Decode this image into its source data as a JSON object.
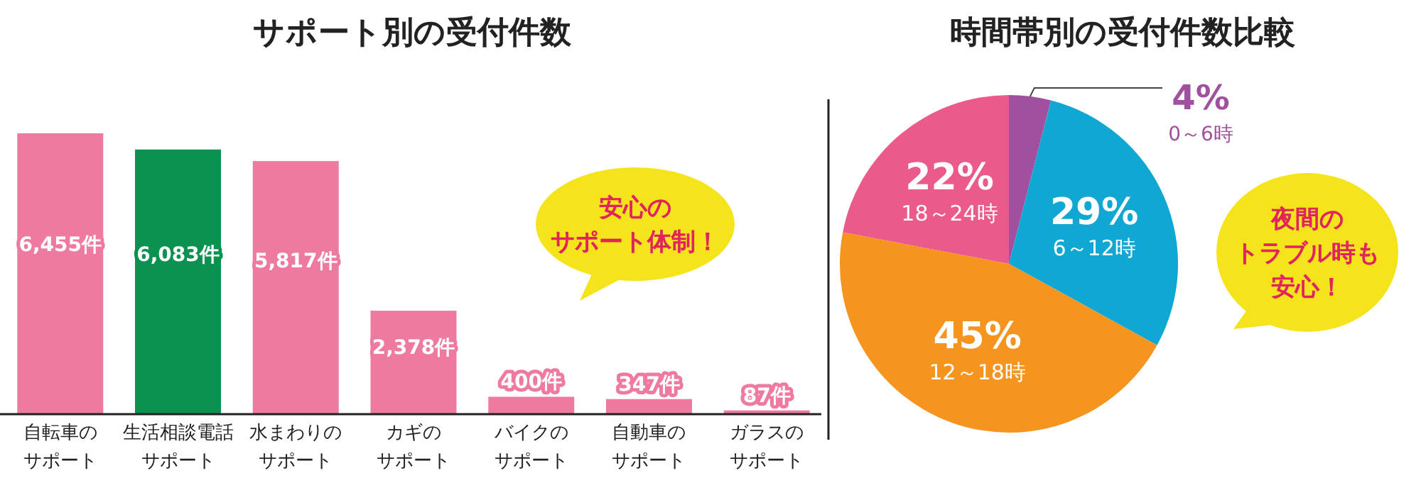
{
  "chart_data": [
    {
      "type": "bar",
      "title": "サポート別の受付件数",
      "relative": false,
      "categories": [
        "自転車のサポート",
        "生活相談電話サポート",
        "水まわりのサポート",
        "カギのサポート",
        "バイクのサポート",
        "自動車のサポート",
        "ガラスのサポート"
      ],
      "values": [
        6455,
        6083,
        5817,
        2378,
        400,
        347,
        87
      ],
      "colors": [
        "#ef7aa0",
        "#0b9150",
        "#ef7aa0",
        "#ef7aa0",
        "#ef7aa0",
        "#ef7aa0",
        "#ef7aa0"
      ],
      "value_labels": [
        "6,455件",
        "6,083件",
        "5,817件",
        "2,378件",
        "400件",
        "347件",
        "87件"
      ],
      "annotations": [
        "安心のサポート体制！"
      ]
    },
    {
      "type": "pie",
      "title": "時間帯別の受付件数比較",
      "categories": [
        "0～6時",
        "6～12時",
        "12～18時",
        "18～24時"
      ],
      "values": [
        4,
        29,
        45,
        22
      ],
      "colors": [
        "#a0509f",
        "#10a7d2",
        "#f5951f",
        "#ea5a8a"
      ],
      "value_labels": [
        "4%",
        "29%",
        "45%",
        "22%"
      ],
      "annotations": [
        "夜間のトラブル時も安心！"
      ]
    }
  ]
}
